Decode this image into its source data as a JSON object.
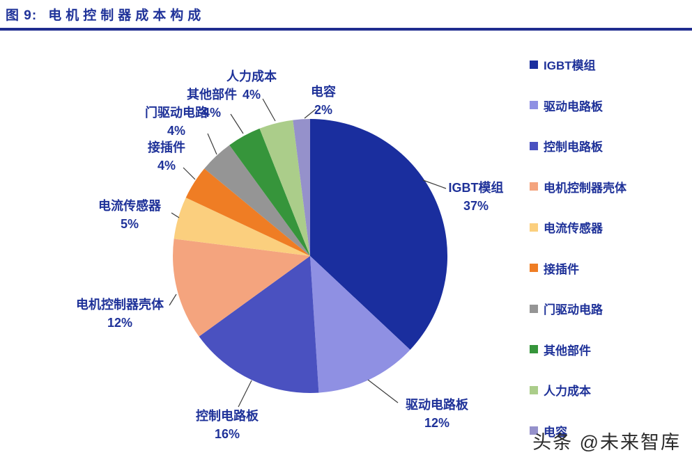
{
  "header": {
    "figure_label": "图 9:",
    "title": "电机控制器成本构成"
  },
  "watermark": {
    "text": "头条 @未来智库"
  },
  "colors": {
    "title_navy": "#1F3299",
    "rule_navy": "#1F2D8F",
    "label_navy": "#1F3299",
    "watermark_gray": "#2b2b2b"
  },
  "chart_data": {
    "type": "pie",
    "title": "电机控制器成本构成",
    "unit": "%",
    "direction": "clockwise",
    "start_angle_deg": 0,
    "legend_position": "right",
    "slices": [
      {
        "label": "IGBT模组",
        "value": 37,
        "color": "#1A2E9E"
      },
      {
        "label": "驱动电路板",
        "value": 12,
        "color": "#8F90E3"
      },
      {
        "label": "控制电路板",
        "value": 16,
        "color": "#4A51C0"
      },
      {
        "label": "电机控制器壳体",
        "value": 12,
        "color": "#F4A47E"
      },
      {
        "label": "电流传感器",
        "value": 5,
        "color": "#FBCF7E"
      },
      {
        "label": "接插件",
        "value": 4,
        "color": "#EF7D24"
      },
      {
        "label": "门驱动电路",
        "value": 4,
        "color": "#959595"
      },
      {
        "label": "其他部件",
        "value": 4,
        "color": "#36953B"
      },
      {
        "label": "人力成本",
        "value": 4,
        "color": "#ABCD8A"
      },
      {
        "label": "电容",
        "value": 2,
        "color": "#9591CB"
      }
    ]
  }
}
